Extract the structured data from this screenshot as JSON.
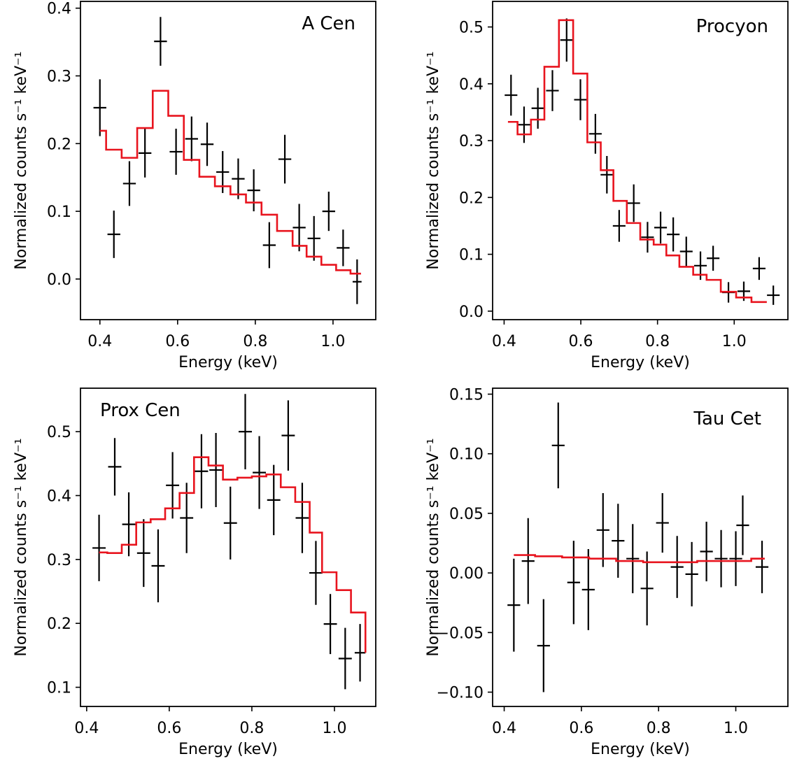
{
  "figure": {
    "xlabel": "Energy (keV)"
  },
  "colors": {
    "data": "#000000",
    "model": "#e8141e",
    "axes": "#000000"
  },
  "chart_data": [
    {
      "type": "scatter",
      "annotation": "A Cen",
      "xlabel": "Energy (keV)",
      "ylabel": "Normalized counts s⁻¹ keV⁻¹",
      "xlim": [
        0.35,
        1.11
      ],
      "ylim": [
        -0.06,
        0.41
      ],
      "xticks": [
        0.4,
        0.6,
        0.8,
        1.0
      ],
      "xtick_labels": [
        "0.4",
        "0.6",
        "0.8",
        "1.0"
      ],
      "yticks": [
        0.0,
        0.1,
        0.2,
        0.3,
        0.4
      ],
      "ytick_labels": [
        "0.0",
        "0.1",
        "0.2",
        "0.3",
        "0.4"
      ],
      "data": [
        {
          "x": 0.4,
          "xerr": 0.0165,
          "y": 0.253,
          "yerr": 0.042
        },
        {
          "x": 0.436,
          "xerr": 0.0165,
          "y": 0.066,
          "yerr": 0.035
        },
        {
          "x": 0.476,
          "xerr": 0.0165,
          "y": 0.141,
          "yerr": 0.033
        },
        {
          "x": 0.516,
          "xerr": 0.0165,
          "y": 0.186,
          "yerr": 0.036
        },
        {
          "x": 0.556,
          "xerr": 0.0165,
          "y": 0.351,
          "yerr": 0.036
        },
        {
          "x": 0.596,
          "xerr": 0.0165,
          "y": 0.188,
          "yerr": 0.034
        },
        {
          "x": 0.636,
          "xerr": 0.0165,
          "y": 0.207,
          "yerr": 0.033
        },
        {
          "x": 0.676,
          "xerr": 0.0165,
          "y": 0.199,
          "yerr": 0.032
        },
        {
          "x": 0.716,
          "xerr": 0.0165,
          "y": 0.158,
          "yerr": 0.031
        },
        {
          "x": 0.756,
          "xerr": 0.0165,
          "y": 0.148,
          "yerr": 0.03
        },
        {
          "x": 0.796,
          "xerr": 0.0165,
          "y": 0.131,
          "yerr": 0.031
        },
        {
          "x": 0.836,
          "xerr": 0.0165,
          "y": 0.05,
          "yerr": 0.034
        },
        {
          "x": 0.876,
          "xerr": 0.0165,
          "y": 0.177,
          "yerr": 0.036
        },
        {
          "x": 0.913,
          "xerr": 0.0165,
          "y": 0.076,
          "yerr": 0.035
        },
        {
          "x": 0.951,
          "xerr": 0.0165,
          "y": 0.06,
          "yerr": 0.033
        },
        {
          "x": 0.989,
          "xerr": 0.0165,
          "y": 0.1,
          "yerr": 0.029
        },
        {
          "x": 1.026,
          "xerr": 0.0165,
          "y": 0.046,
          "yerr": 0.027
        },
        {
          "x": 1.062,
          "xerr": 0.0115,
          "y": -0.004,
          "yerr": 0.033
        }
      ],
      "model_step": {
        "edges": [
          0.4,
          0.416,
          0.456,
          0.496,
          0.536,
          0.576,
          0.616,
          0.656,
          0.696,
          0.736,
          0.776,
          0.816,
          0.856,
          0.896,
          0.932,
          0.97,
          1.008,
          1.045,
          1.072
        ],
        "values": [
          0.219,
          0.191,
          0.179,
          0.223,
          0.278,
          0.241,
          0.176,
          0.151,
          0.137,
          0.125,
          0.113,
          0.095,
          0.071,
          0.049,
          0.033,
          0.021,
          0.013,
          0.008
        ]
      }
    },
    {
      "type": "scatter",
      "annotation": "Procyon",
      "xlabel": "Energy (keV)",
      "ylabel": "Normalized counts s⁻¹ keV⁻¹",
      "xlim": [
        0.37,
        1.14
      ],
      "ylim": [
        -0.015,
        0.545
      ],
      "xticks": [
        0.4,
        0.6,
        0.8,
        1.0
      ],
      "xtick_labels": [
        "0.4",
        "0.6",
        "0.8",
        "1.0"
      ],
      "yticks": [
        0.0,
        0.1,
        0.2,
        0.3,
        0.4,
        0.5
      ],
      "ytick_labels": [
        "0.0",
        "0.1",
        "0.2",
        "0.3",
        "0.4",
        "0.5"
      ],
      "data": [
        {
          "x": 0.418,
          "xerr": 0.0165,
          "y": 0.38,
          "yerr": 0.036
        },
        {
          "x": 0.452,
          "xerr": 0.0165,
          "y": 0.328,
          "yerr": 0.032
        },
        {
          "x": 0.488,
          "xerr": 0.0165,
          "y": 0.357,
          "yerr": 0.036
        },
        {
          "x": 0.526,
          "xerr": 0.0165,
          "y": 0.388,
          "yerr": 0.036
        },
        {
          "x": 0.563,
          "xerr": 0.0165,
          "y": 0.477,
          "yerr": 0.038
        },
        {
          "x": 0.599,
          "xerr": 0.0165,
          "y": 0.372,
          "yerr": 0.036
        },
        {
          "x": 0.638,
          "xerr": 0.0165,
          "y": 0.312,
          "yerr": 0.035
        },
        {
          "x": 0.668,
          "xerr": 0.0165,
          "y": 0.24,
          "yerr": 0.033
        },
        {
          "x": 0.7,
          "xerr": 0.0165,
          "y": 0.15,
          "yerr": 0.028
        },
        {
          "x": 0.738,
          "xerr": 0.0165,
          "y": 0.19,
          "yerr": 0.033
        },
        {
          "x": 0.774,
          "xerr": 0.0165,
          "y": 0.13,
          "yerr": 0.027
        },
        {
          "x": 0.808,
          "xerr": 0.0165,
          "y": 0.147,
          "yerr": 0.028
        },
        {
          "x": 0.841,
          "xerr": 0.0165,
          "y": 0.135,
          "yerr": 0.03
        },
        {
          "x": 0.875,
          "xerr": 0.0165,
          "y": 0.105,
          "yerr": 0.026
        },
        {
          "x": 0.912,
          "xerr": 0.0165,
          "y": 0.08,
          "yerr": 0.025
        },
        {
          "x": 0.945,
          "xerr": 0.0165,
          "y": 0.093,
          "yerr": 0.022
        },
        {
          "x": 0.985,
          "xerr": 0.0165,
          "y": 0.033,
          "yerr": 0.018
        },
        {
          "x": 1.025,
          "xerr": 0.0165,
          "y": 0.035,
          "yerr": 0.017
        },
        {
          "x": 1.065,
          "xerr": 0.0165,
          "y": 0.075,
          "yerr": 0.02
        },
        {
          "x": 1.102,
          "xerr": 0.0165,
          "y": 0.028,
          "yerr": 0.017
        }
      ],
      "model_step": {
        "edges": [
          0.41,
          0.435,
          0.47,
          0.505,
          0.543,
          0.58,
          0.617,
          0.652,
          0.685,
          0.72,
          0.755,
          0.79,
          0.823,
          0.857,
          0.893,
          0.928,
          0.965,
          1.005,
          1.045,
          1.085
        ],
        "values": [
          0.333,
          0.311,
          0.337,
          0.43,
          0.512,
          0.418,
          0.297,
          0.248,
          0.194,
          0.155,
          0.126,
          0.117,
          0.098,
          0.078,
          0.064,
          0.055,
          0.034,
          0.024,
          0.016
        ]
      }
    },
    {
      "type": "scatter",
      "annotation": "Prox Cen",
      "xlabel": "Energy (keV)",
      "ylabel": "Normalized counts s⁻¹ keV⁻¹",
      "xlim": [
        0.385,
        1.1
      ],
      "ylim": [
        0.07,
        0.568
      ],
      "xticks": [
        0.4,
        0.6,
        0.8,
        1.0
      ],
      "xtick_labels": [
        "0.4",
        "0.6",
        "0.8",
        "1.0"
      ],
      "yticks": [
        0.1,
        0.2,
        0.3,
        0.4,
        0.5
      ],
      "ytick_labels": [
        "0.1",
        "0.2",
        "0.3",
        "0.4",
        "0.5"
      ],
      "data": [
        {
          "x": 0.43,
          "xerr": 0.016,
          "y": 0.318,
          "yerr": 0.052
        },
        {
          "x": 0.468,
          "xerr": 0.016,
          "y": 0.445,
          "yerr": 0.045
        },
        {
          "x": 0.502,
          "xerr": 0.016,
          "y": 0.355,
          "yerr": 0.05
        },
        {
          "x": 0.538,
          "xerr": 0.016,
          "y": 0.31,
          "yerr": 0.053
        },
        {
          "x": 0.573,
          "xerr": 0.016,
          "y": 0.29,
          "yerr": 0.057
        },
        {
          "x": 0.608,
          "xerr": 0.016,
          "y": 0.416,
          "yerr": 0.052
        },
        {
          "x": 0.642,
          "xerr": 0.016,
          "y": 0.365,
          "yerr": 0.055
        },
        {
          "x": 0.678,
          "xerr": 0.016,
          "y": 0.438,
          "yerr": 0.058
        },
        {
          "x": 0.713,
          "xerr": 0.016,
          "y": 0.44,
          "yerr": 0.058
        },
        {
          "x": 0.748,
          "xerr": 0.016,
          "y": 0.357,
          "yerr": 0.057
        },
        {
          "x": 0.784,
          "xerr": 0.016,
          "y": 0.5,
          "yerr": 0.059
        },
        {
          "x": 0.818,
          "xerr": 0.016,
          "y": 0.436,
          "yerr": 0.057
        },
        {
          "x": 0.853,
          "xerr": 0.016,
          "y": 0.393,
          "yerr": 0.055
        },
        {
          "x": 0.888,
          "xerr": 0.016,
          "y": 0.494,
          "yerr": 0.055
        },
        {
          "x": 0.922,
          "xerr": 0.016,
          "y": 0.365,
          "yerr": 0.055
        },
        {
          "x": 0.955,
          "xerr": 0.016,
          "y": 0.279,
          "yerr": 0.05
        },
        {
          "x": 0.99,
          "xerr": 0.016,
          "y": 0.199,
          "yerr": 0.047
        },
        {
          "x": 1.026,
          "xerr": 0.016,
          "y": 0.145,
          "yerr": 0.048
        },
        {
          "x": 1.062,
          "xerr": 0.013,
          "y": 0.154,
          "yerr": 0.045
        }
      ],
      "model_step": {
        "edges": [
          0.43,
          0.45,
          0.485,
          0.52,
          0.555,
          0.59,
          0.625,
          0.66,
          0.695,
          0.73,
          0.765,
          0.8,
          0.835,
          0.87,
          0.905,
          0.94,
          0.97,
          1.005,
          1.04,
          1.075
        ],
        "values": [
          0.311,
          0.31,
          0.323,
          0.358,
          0.363,
          0.38,
          0.404,
          0.46,
          0.447,
          0.425,
          0.428,
          0.43,
          0.433,
          0.413,
          0.39,
          0.342,
          0.28,
          0.252,
          0.217,
          0.154
        ]
      }
    },
    {
      "type": "scatter",
      "annotation": "Tau Cet",
      "xlabel": "Energy (keV)",
      "ylabel": "Normalized counts s⁻¹ keV⁻¹",
      "xlim": [
        0.37,
        1.135
      ],
      "ylim": [
        -0.112,
        0.155
      ],
      "xticks": [
        0.4,
        0.6,
        0.8,
        1.0
      ],
      "xtick_labels": [
        "0.4",
        "0.6",
        "0.8",
        "1.0"
      ],
      "yticks": [
        -0.1,
        -0.05,
        0.0,
        0.05,
        0.1,
        0.15
      ],
      "ytick_labels": [
        "−0.10",
        "−0.05",
        "0.00",
        "0.05",
        "0.10",
        "0.15"
      ],
      "data": [
        {
          "x": 0.425,
          "xerr": 0.0165,
          "y": -0.027,
          "yerr": 0.039
        },
        {
          "x": 0.462,
          "xerr": 0.0165,
          "y": 0.01,
          "yerr": 0.036
        },
        {
          "x": 0.502,
          "xerr": 0.0165,
          "y": -0.061,
          "yerr": 0.039
        },
        {
          "x": 0.54,
          "xerr": 0.0165,
          "y": 0.107,
          "yerr": 0.036
        },
        {
          "x": 0.58,
          "xerr": 0.0165,
          "y": -0.008,
          "yerr": 0.035
        },
        {
          "x": 0.618,
          "xerr": 0.0165,
          "y": -0.014,
          "yerr": 0.034
        },
        {
          "x": 0.656,
          "xerr": 0.0165,
          "y": 0.036,
          "yerr": 0.031
        },
        {
          "x": 0.695,
          "xerr": 0.0165,
          "y": 0.027,
          "yerr": 0.031
        },
        {
          "x": 0.733,
          "xerr": 0.0165,
          "y": 0.012,
          "yerr": 0.029
        },
        {
          "x": 0.77,
          "xerr": 0.0165,
          "y": -0.013,
          "yerr": 0.031
        },
        {
          "x": 0.81,
          "xerr": 0.0165,
          "y": 0.042,
          "yerr": 0.025
        },
        {
          "x": 0.848,
          "xerr": 0.0165,
          "y": 0.005,
          "yerr": 0.026
        },
        {
          "x": 0.886,
          "xerr": 0.0165,
          "y": -0.001,
          "yerr": 0.027
        },
        {
          "x": 0.924,
          "xerr": 0.0165,
          "y": 0.018,
          "yerr": 0.025
        },
        {
          "x": 0.962,
          "xerr": 0.0165,
          "y": 0.012,
          "yerr": 0.024
        },
        {
          "x": 1.0,
          "xerr": 0.0165,
          "y": 0.012,
          "yerr": 0.023
        },
        {
          "x": 1.018,
          "xerr": 0.0165,
          "y": 0.04,
          "yerr": 0.025
        },
        {
          "x": 1.068,
          "xerr": 0.0165,
          "y": 0.005,
          "yerr": 0.022
        }
      ],
      "model_step": {
        "edges": [
          0.425,
          0.48,
          0.55,
          0.62,
          0.69,
          0.76,
          0.83,
          0.9,
          0.97,
          1.04,
          1.075
        ],
        "values": [
          0.015,
          0.014,
          0.013,
          0.012,
          0.01,
          0.009,
          0.009,
          0.01,
          0.01,
          0.012
        ]
      }
    }
  ]
}
